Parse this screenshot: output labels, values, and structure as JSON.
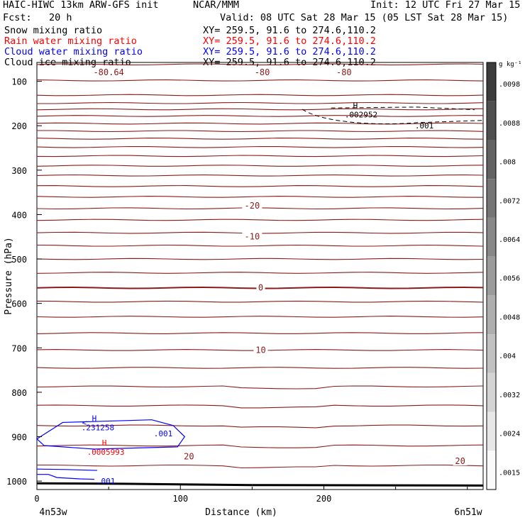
{
  "header": {
    "model_line": "HAIC-HIWC 13km ARW-GFS init",
    "org": "NCAR/MMM",
    "init": "Init: 12 UTC Fri 27 Mar 15",
    "fcst": "Fcst:   20 h",
    "valid": "Valid: 08 UTC Sat 28 Mar 15 (05 LST Sat 28 Mar 15)",
    "fields": [
      {
        "label": "Snow mixing ratio",
        "xy": "XY= 259.5, 91.6 to 274.6,110.2",
        "color": "#000000"
      },
      {
        "label": "Rain water mixing ratio",
        "xy": "XY= 259.5, 91.6 to 274.6,110.2",
        "color": "#ff0000"
      },
      {
        "label": "Cloud water mixing ratio",
        "xy": "XY= 259.5, 91.6 to 274.6,110.2",
        "color": "#0000ff"
      },
      {
        "label": "Cloud ice mixing ratio",
        "xy": "XY= 259.5, 91.6 to 274.6,110.2",
        "color": "#000000"
      }
    ]
  },
  "chart_data": {
    "type": "contour",
    "xlabel": "Distance (km)",
    "ylabel": "Pressure (hPa)",
    "xlim": [
      0,
      300
    ],
    "ylim": [
      1000,
      50
    ],
    "x_ticks": [
      "0",
      "100",
      "200"
    ],
    "y_ticks": [
      "100",
      "200",
      "300",
      "400",
      "500",
      "600",
      "700",
      "800",
      "900",
      "1000"
    ],
    "left_end_label": "4n53w",
    "right_end_label": "6n51w",
    "colorbar": {
      "units": "g kg⁻¹",
      "ticks": [
        ".0098",
        ".0088",
        ".008",
        ".0072",
        ".0064",
        ".0056",
        ".0048",
        ".004",
        ".0032",
        ".0024",
        ".0015"
      ]
    },
    "temperature_isotherms": {
      "color": "#8b1a1a",
      "labeled": [
        {
          "label": "-80.64",
          "x": 50,
          "p": 80
        },
        {
          "label": "-80",
          "x": 157,
          "p": 80
        },
        {
          "label": "-80",
          "x": 214,
          "p": 80
        },
        {
          "label": "-20",
          "x": 150,
          "p": 380
        },
        {
          "label": "-10",
          "x": 150,
          "p": 450
        },
        {
          "label": "0",
          "x": 156,
          "p": 565
        },
        {
          "label": "10",
          "x": 156,
          "p": 705
        },
        {
          "label": "20",
          "x": 106,
          "p": 945
        },
        {
          "label": "20",
          "x": 295,
          "p": 955
        }
      ]
    },
    "cloud_ice": {
      "color": "#000000",
      "max_label": "H",
      "max_value": ".002952",
      "contour_label": ".001",
      "max_position": {
        "x": 222,
        "p": 170
      }
    },
    "cloud_water": {
      "color": "#0000ff",
      "max_label": "H",
      "max_value": ".231258",
      "contour_labels": [
        ".001",
        ".001"
      ],
      "max_position": {
        "x": 40,
        "p": 870
      }
    },
    "rain_water": {
      "color": "#ff0000",
      "max_label": "H",
      "max_value": ".0005993",
      "max_position": {
        "x": 47,
        "p": 925
      }
    }
  }
}
